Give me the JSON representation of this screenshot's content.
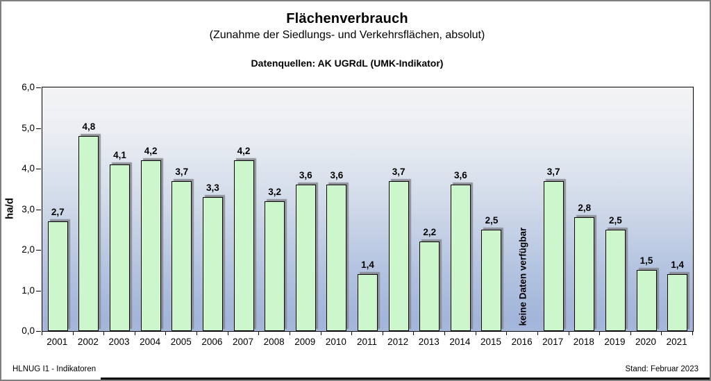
{
  "chart_data": {
    "type": "bar",
    "title": "Flächenverbrauch",
    "subtitle": "(Zunahme der Siedlungs- und Verkehrsflächen, absolut)",
    "source_note": "Datenquellen: AK UGRdL (UMK-Indikator)",
    "ylabel": "ha/d",
    "ylim": [
      0,
      6
    ],
    "ytick_interval": 1.0,
    "ytick_labels": [
      "0,0",
      "1,0",
      "2,0",
      "3,0",
      "4,0",
      "5,0",
      "6,0"
    ],
    "grid": false,
    "legend": "none",
    "categories": [
      "2001",
      "2002",
      "2003",
      "2004",
      "2005",
      "2006",
      "2007",
      "2008",
      "2009",
      "2010",
      "2011",
      "2012",
      "2013",
      "2014",
      "2015",
      "2016",
      "2017",
      "2018",
      "2019",
      "2020",
      "2021"
    ],
    "values": [
      2.7,
      4.8,
      4.1,
      4.2,
      3.7,
      3.3,
      4.2,
      3.2,
      3.6,
      3.6,
      1.4,
      3.7,
      2.2,
      3.6,
      2.5,
      null,
      3.7,
      2.8,
      2.5,
      1.5,
      1.4
    ],
    "value_labels": [
      "2,7",
      "4,8",
      "4,1",
      "4,2",
      "3,7",
      "3,3",
      "4,2",
      "3,2",
      "3,6",
      "3,6",
      "1,4",
      "3,7",
      "2,2",
      "3,6",
      "2,5",
      "",
      "3,7",
      "2,8",
      "2,5",
      "1,5",
      "1,4"
    ],
    "no_data": {
      "category": "2016",
      "label": "keine Daten verfügbar"
    },
    "colors": {
      "bar_fill": "#ccf7cc",
      "bar_border": "#000000",
      "bar_shadow": "#8f9496",
      "plot_background_top": "#f3f3f5",
      "plot_background_bottom": "#a2b5d9",
      "text": "#000000",
      "page_border": "#7f7f7f"
    }
  },
  "footer": {
    "left": "HLNUG I1 - Indikatoren",
    "right": "Stand: Februar 2023"
  }
}
